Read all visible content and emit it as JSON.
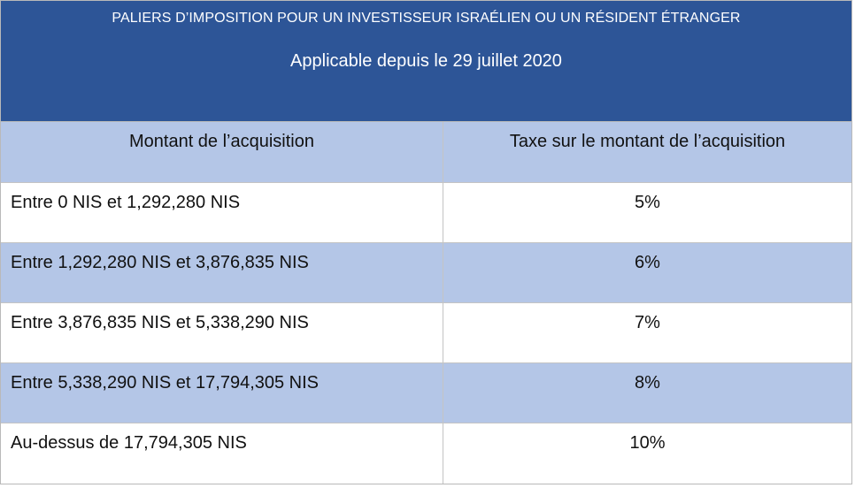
{
  "header": {
    "title": "PALIERS D’IMPOSITION POUR UN INVESTISSEUR ISRAÉLIEN OU UN RÉSIDENT ÉTRANGER",
    "subtitle": "Applicable depuis le 29 juillet 2020",
    "background_color": "#2d5597"
  },
  "table": {
    "columns": [
      "Montant de l’acquisition",
      "Taxe sur le montant de l’acquisition"
    ],
    "header_color": "#b4c6e7",
    "rows": [
      {
        "range": "Entre 0 NIS et 1,292,280 NIS",
        "tax": "5%"
      },
      {
        "range": "Entre 1,292,280 NIS et 3,876,835 NIS",
        "tax": "6%"
      },
      {
        "range": "Entre 3,876,835 NIS et 5,338,290 NIS",
        "tax": "7%"
      },
      {
        "range": "Entre 5,338,290 NIS et 17,794,305 NIS",
        "tax": "8%"
      },
      {
        "range": "Au-dessus de 17,794,305 NIS",
        "tax": "10%"
      }
    ]
  }
}
